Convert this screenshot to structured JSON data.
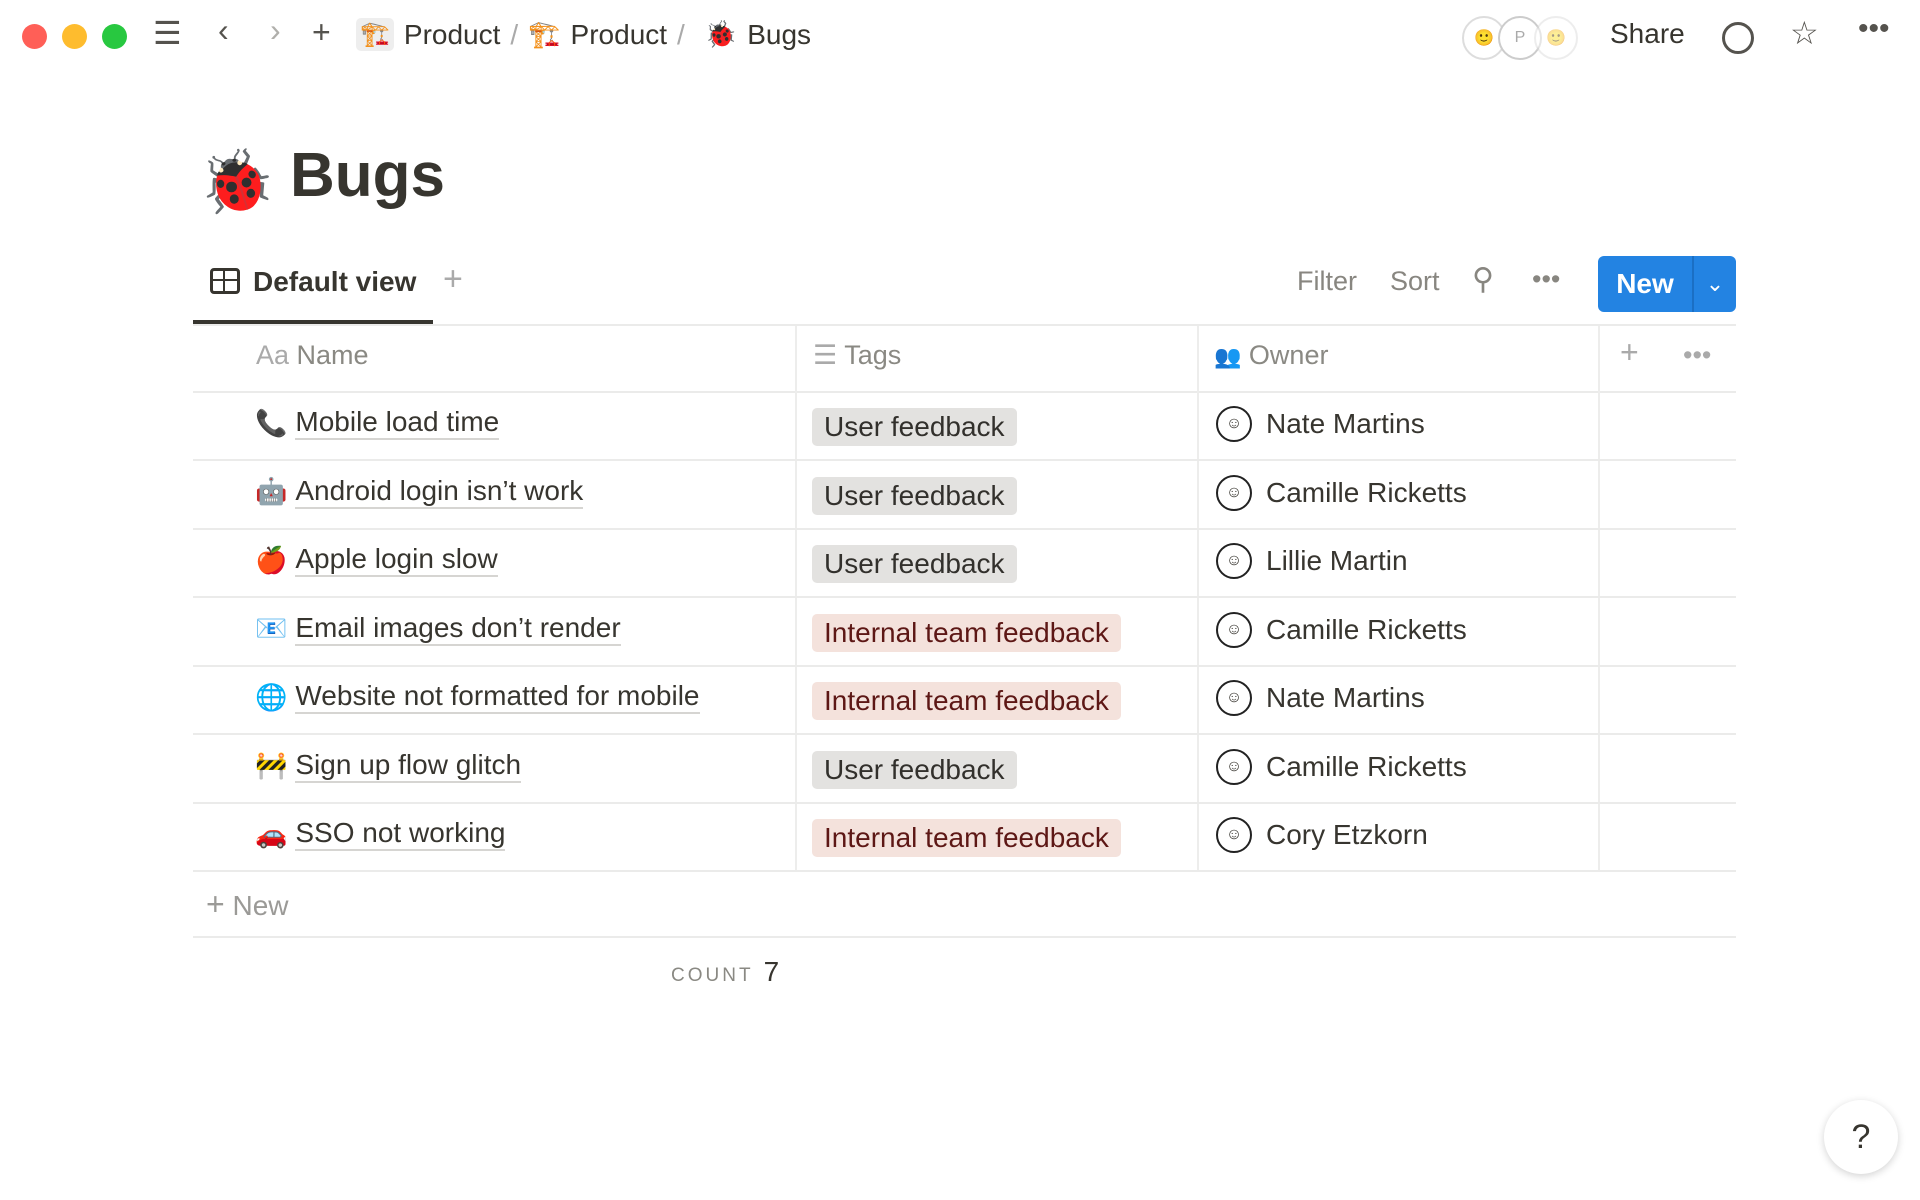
{
  "topbar": {
    "breadcrumbs": [
      {
        "icon": "🏗️",
        "label": "Product"
      },
      {
        "icon": "🏗️",
        "label": "Product"
      },
      {
        "icon": "🐞",
        "label": "Bugs"
      }
    ],
    "presence_initial": "P",
    "share_label": "Share"
  },
  "page": {
    "icon": "🐞",
    "title": "Bugs"
  },
  "views": {
    "active_label": "Default view",
    "filter_label": "Filter",
    "sort_label": "Sort",
    "new_label": "New"
  },
  "table": {
    "columns": [
      {
        "icon": "Aa",
        "label": "Name"
      },
      {
        "icon": "list-icon",
        "label": "Tags"
      },
      {
        "icon": "people-icon",
        "label": "Owner"
      }
    ],
    "rows": [
      {
        "icon": "📞",
        "name": "Mobile load time",
        "tag": "User feedback",
        "owner": "Nate Martins"
      },
      {
        "icon": "🤖",
        "name": "Android login isn’t work",
        "tag": "User feedback",
        "owner": "Camille Ricketts"
      },
      {
        "icon": "🍎",
        "name": "Apple login slow",
        "tag": "User feedback",
        "owner": "Lillie Martin"
      },
      {
        "icon": "📧",
        "name": "Email images don’t render",
        "tag": "Internal team feedback",
        "owner": "Camille Ricketts"
      },
      {
        "icon": "🌐",
        "name": "Website not formatted for mobile",
        "tag": "Internal team feedback",
        "owner": "Nate Martins"
      },
      {
        "icon": "🚧",
        "name": "Sign up flow glitch",
        "tag": "User feedback",
        "owner": "Camille Ricketts"
      },
      {
        "icon": "🚗",
        "name": "SSO not working",
        "tag": "Internal team feedback",
        "owner": "Cory Etzkorn"
      }
    ],
    "new_row_label": "New",
    "count_label": "COUNT",
    "count_value": "7"
  },
  "help_label": "?",
  "colors": {
    "accent": "#2383e2",
    "tag_user": "#e3e2e0",
    "tag_internal": "#f4e2dc",
    "tag_internal_text": "#5d1715"
  }
}
